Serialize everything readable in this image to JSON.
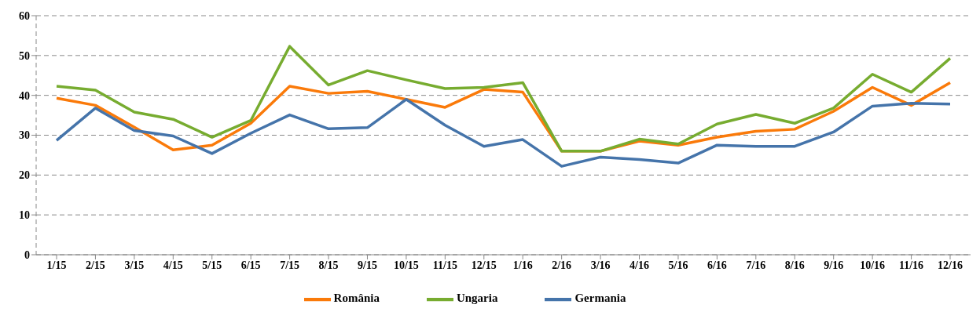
{
  "chart_data": {
    "type": "line",
    "categories": [
      "1/15",
      "2/15",
      "3/15",
      "4/15",
      "5/15",
      "6/15",
      "7/15",
      "8/15",
      "9/15",
      "10/15",
      "11/15",
      "12/15",
      "1/16",
      "2/16",
      "3/16",
      "4/16",
      "5/16",
      "6/16",
      "7/16",
      "8/16",
      "9/16",
      "10/16",
      "11/16",
      "12/16"
    ],
    "series": [
      {
        "name": "România",
        "color": "#fa7a0a",
        "values": [
          39.3,
          37.5,
          32,
          26.3,
          27.5,
          33,
          42.3,
          40.5,
          41,
          39,
          37,
          41.5,
          40.8,
          26,
          26,
          28.5,
          27.5,
          29.5,
          31,
          31.5,
          36,
          42,
          37.5,
          43.2
        ]
      },
      {
        "name": "Ungaria",
        "color": "#77ac30",
        "values": [
          42.3,
          41.3,
          35.8,
          34,
          29.5,
          33.7,
          52.3,
          42.6,
          46.2,
          43.9,
          41.7,
          42,
          43.2,
          26,
          26,
          29,
          27.8,
          32.8,
          35.2,
          33,
          36.8,
          45.3,
          40.8,
          49.3
        ]
      },
      {
        "name": "Germania",
        "color": "#4574aa",
        "values": [
          28.7,
          36.8,
          31.2,
          29.8,
          25.4,
          30.5,
          35.1,
          31.6,
          31.9,
          39,
          32.5,
          27.2,
          28.9,
          22.2,
          24.5,
          23.9,
          23,
          27.5,
          27.2,
          27.2,
          30.8,
          37.3,
          38,
          37.8
        ]
      }
    ],
    "ylim": [
      0,
      60
    ],
    "yticks": [
      0,
      10,
      20,
      30,
      40,
      50,
      60
    ],
    "grid": "y",
    "legend": "bottom",
    "marker": "none",
    "line_style": "solid"
  }
}
